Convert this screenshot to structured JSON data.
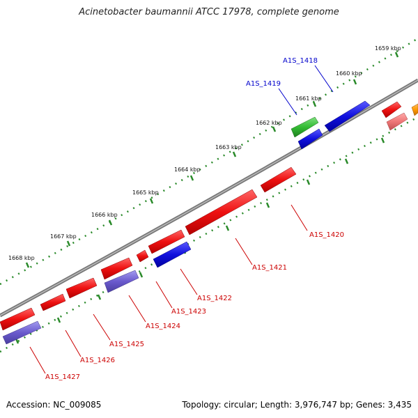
{
  "title": "Acinetobacter baumannii ATCC 17978, complete genome",
  "footer": {
    "accession": "Accession: NC_009085",
    "summary": "Topology: circular; Length: 3,976,747 bp; Genes: 3,435"
  },
  "kbp_labels": [
    "1659 kbp",
    "1660 kbp",
    "1661 kbp",
    "1662 kbp",
    "1663 kbp",
    "1664 kbp",
    "1665 kbp",
    "1666 kbp",
    "1667 kbp",
    "1668 kbp"
  ],
  "gene_labels": [
    "A1S_1418",
    "A1S_1419",
    "A1S_1420",
    "A1S_1421",
    "A1S_1422",
    "A1S_1423",
    "A1S_1424",
    "A1S_1425",
    "A1S_1426",
    "A1S_1427"
  ],
  "colors": {
    "red": "#ee1111",
    "blue": "#1010dd",
    "purple": "#6a5acd",
    "green": "#33bb33",
    "pink": "#ee7777",
    "orange": "#ff9900",
    "backbone": "#888888",
    "tick": "#2a8a2a",
    "label_red": "#cc0000",
    "label_blue": "#0000cc"
  }
}
